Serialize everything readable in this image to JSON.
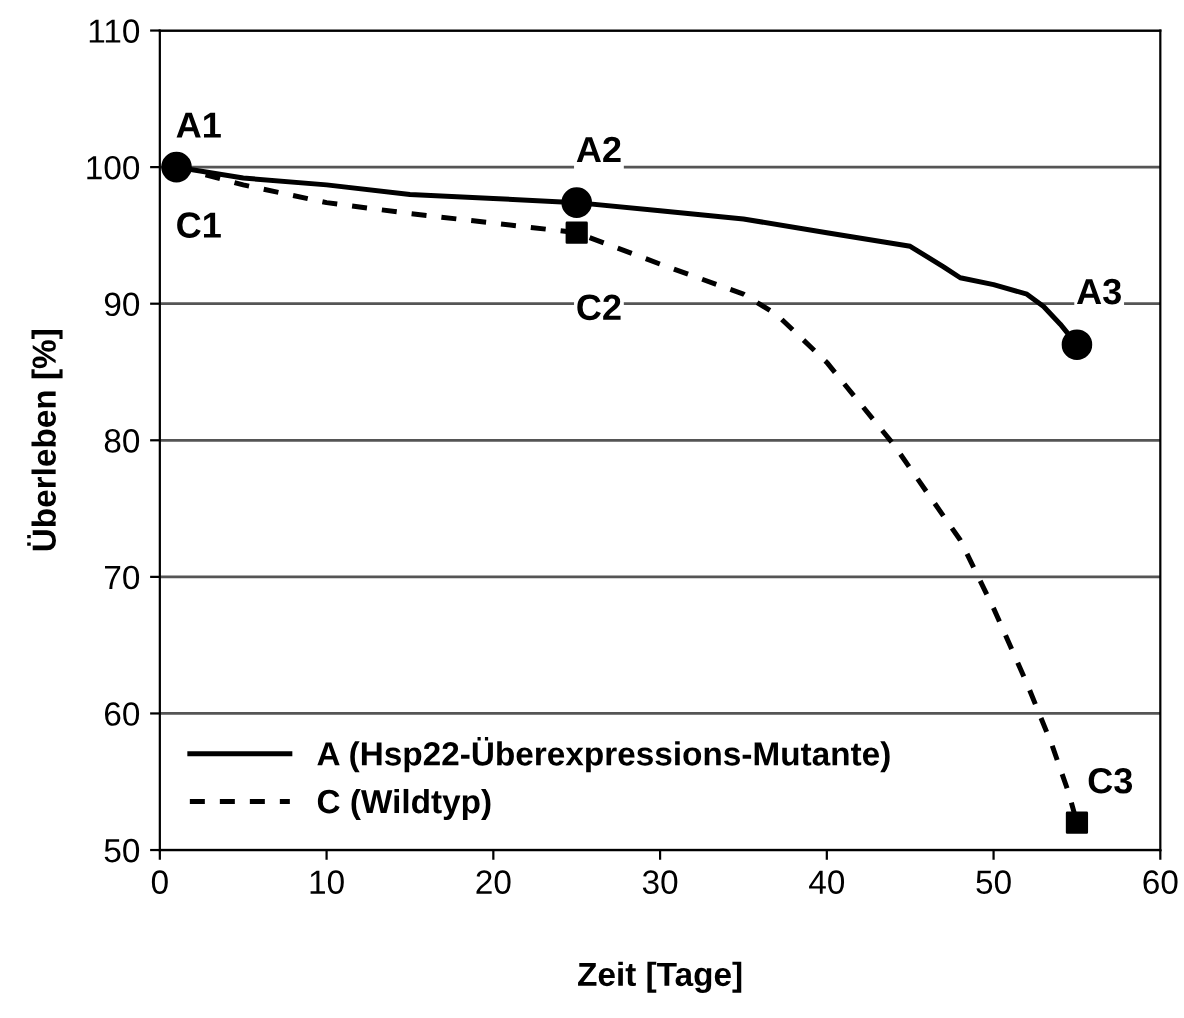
{
  "chart_data": {
    "type": "line",
    "xlabel": "Zeit [Tage]",
    "ylabel": "Überleben [%]",
    "xlim": [
      0,
      60
    ],
    "xticks": [
      0,
      10,
      20,
      30,
      40,
      50,
      60
    ],
    "ylim": [
      50,
      110
    ],
    "yticks": [
      50,
      60,
      70,
      80,
      90,
      100,
      110
    ],
    "grid": "y",
    "legend": "bottom left",
    "series": [
      {
        "name": "A (Hsp22-Überexpressions-Mutante)",
        "color": "#000000",
        "line_style": "solid",
        "marker": "none",
        "x": [
          1,
          5,
          10,
          15,
          20,
          25,
          30,
          35,
          40,
          45,
          47,
          48,
          50,
          52,
          53,
          54,
          55
        ],
        "values": [
          100,
          99.2,
          98.7,
          98,
          97.7,
          97.4,
          96.8,
          96.2,
          95.2,
          94.2,
          92.7,
          91.9,
          91.4,
          90.7,
          89.8,
          88.5,
          87
        ]
      },
      {
        "name": "C (Wildtyp)",
        "color": "#000000",
        "line_style": "dotted",
        "marker": "none",
        "x": [
          1,
          5,
          10,
          15,
          20,
          25,
          30,
          35,
          37,
          40,
          44,
          46,
          48,
          50,
          52,
          53.5,
          54.5,
          55
        ],
        "values": [
          100,
          98.7,
          97.4,
          96.6,
          95.9,
          95.2,
          92.9,
          90.7,
          89.2,
          85.7,
          79.7,
          76.2,
          72.7,
          67.7,
          62.2,
          57.7,
          54.2,
          52
        ]
      },
      {
        "type": "scatter",
        "color": "#000000",
        "marker": "circle",
        "x": [
          1,
          25,
          55
        ],
        "values": [
          100,
          97.4,
          87
        ]
      },
      {
        "type": "scatter",
        "color": "#000000",
        "marker": "square",
        "x": [
          25,
          55
        ],
        "values": [
          95.2,
          52
        ]
      }
    ],
    "annotations": [
      {
        "text": "A1",
        "x": 1,
        "y": 100
      },
      {
        "text": "A2",
        "x": 25,
        "y": 97.4
      },
      {
        "text": "A3",
        "x": 55,
        "y": 87
      },
      {
        "text": "C1",
        "x": 1,
        "y": 100
      },
      {
        "text": "C2",
        "x": 25,
        "y": 95.2
      },
      {
        "text": "C3",
        "x": 55,
        "y": 52
      }
    ]
  }
}
